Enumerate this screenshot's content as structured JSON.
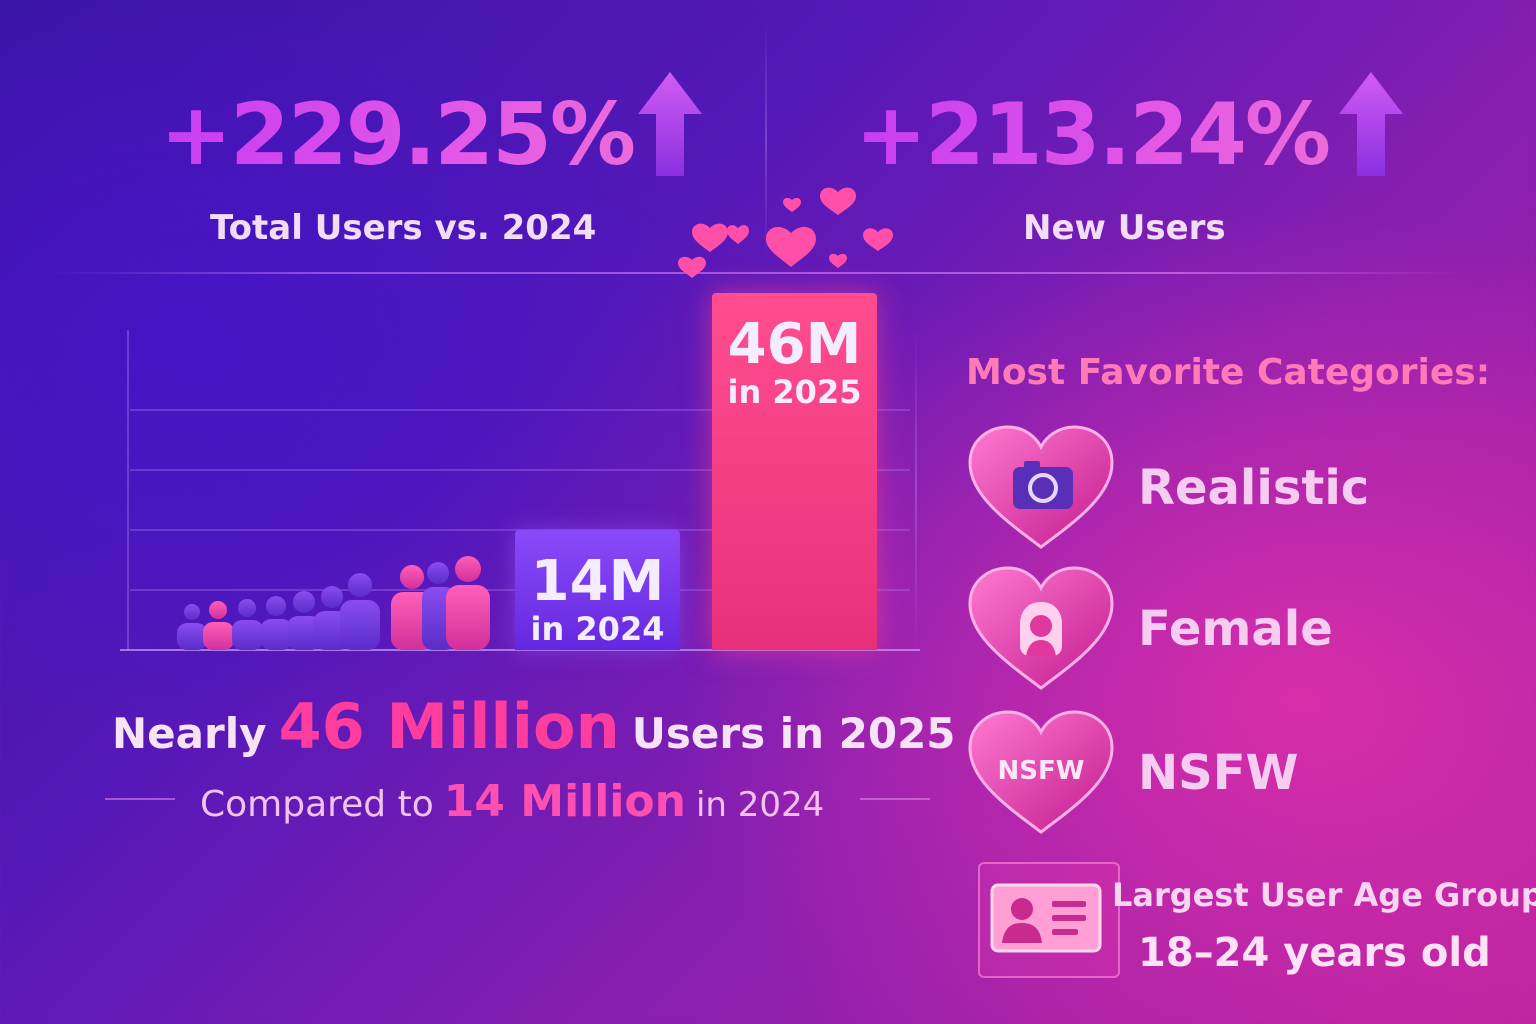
{
  "stats": [
    {
      "value": "+229.25%",
      "label": "Total Users vs. 2024"
    },
    {
      "value": "+213.24%",
      "label": "New Users"
    }
  ],
  "chart_data": {
    "type": "bar",
    "categories": [
      "2024",
      "2025"
    ],
    "values": [
      14,
      46
    ],
    "unit": "M",
    "bar_labels": [
      {
        "value": "14M",
        "year": "in 2024"
      },
      {
        "value": "46M",
        "year": "in 2025"
      }
    ],
    "ylim": [
      0,
      50
    ],
    "colors": [
      "#7a3cf0",
      "#ff3f8e"
    ]
  },
  "headline": {
    "prefix": "Nearly",
    "highlight": "46 Million",
    "suffix": "Users in 2025"
  },
  "comparison": {
    "prefix": "Compared to",
    "highlight": "14 Million",
    "suffix": "in 2024"
  },
  "categories": {
    "title": "Most Favorite Categories:",
    "items": [
      {
        "label": "Realistic",
        "icon": "camera-icon"
      },
      {
        "label": "Female",
        "icon": "female-icon"
      },
      {
        "label": "NSFW",
        "icon": "nsfw-text",
        "icon_text": "NSFW"
      }
    ]
  },
  "age_group": {
    "title": "Largest User Age Group:",
    "value": "18–24 years old",
    "icon": "id-card-icon"
  },
  "colors": {
    "accent_pink": "#ff3d9e",
    "accent_purple": "#c73cf0"
  }
}
